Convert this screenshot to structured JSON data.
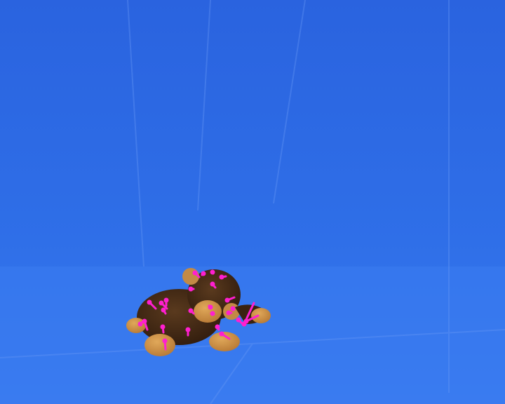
{
  "scene": {
    "background_color": "#2f6fe8",
    "floor_color": "#3a7bf0",
    "subject": "teddy-bear",
    "overlay_color": "#ff1fd0",
    "overlay_marks": 26
  }
}
